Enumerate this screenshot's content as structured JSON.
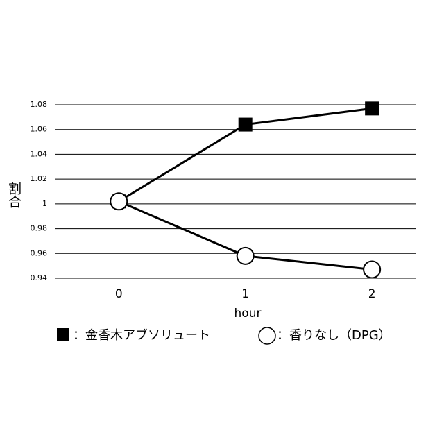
{
  "chart_data": {
    "type": "line",
    "y_label": "割合",
    "x_label": "hour",
    "x": [
      0,
      1,
      2
    ],
    "xlim": [
      -0.5,
      2.35
    ],
    "xticks": [
      0,
      1,
      2
    ],
    "ylim": [
      0.94,
      1.08
    ],
    "yticks": [
      0.94,
      0.96,
      0.98,
      1,
      1.02,
      1.04,
      1.06,
      1.08
    ],
    "grid": true,
    "series": [
      {
        "name": "：金香木アブソリュート",
        "color": "#000000",
        "marker": "square",
        "values": [
          1.002,
          1.064,
          1.077
        ]
      },
      {
        "name": "：香りなし（DPG）",
        "color": "#000000",
        "marker": "circle",
        "values": [
          1.002,
          0.958,
          0.947
        ]
      }
    ]
  }
}
